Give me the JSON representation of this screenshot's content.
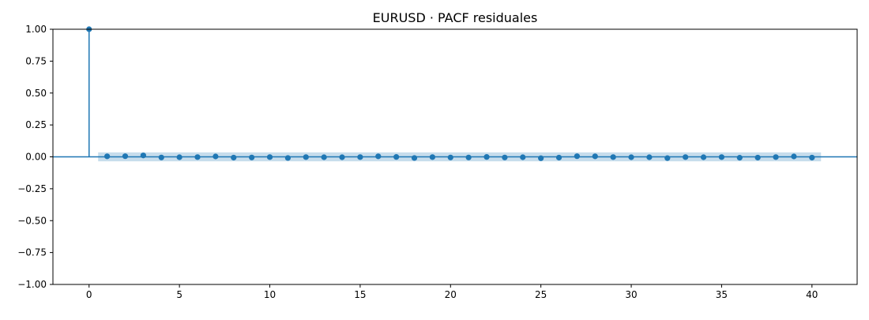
{
  "chart_data": {
    "type": "scatter",
    "title": "EURUSD · PACF residuales",
    "xlabel": "",
    "ylabel": "",
    "xlim": [
      -2,
      42.5
    ],
    "ylim": [
      -1.0,
      1.0
    ],
    "xticks": [
      0,
      5,
      10,
      15,
      20,
      25,
      30,
      35,
      40
    ],
    "xtick_labels": [
      "0",
      "5",
      "10",
      "15",
      "20",
      "25",
      "30",
      "35",
      "40"
    ],
    "yticks": [
      1.0,
      0.75,
      0.5,
      0.25,
      0.0,
      -0.25,
      -0.5,
      -0.75,
      -1.0
    ],
    "ytick_labels": [
      "1.00",
      "0.75",
      "0.50",
      "0.25",
      "0.00",
      "−0.25",
      "−0.50",
      "−0.75",
      "−1.00"
    ],
    "grid": false,
    "legend": "none",
    "series_color": "#1f77b4",
    "confidence_band": {
      "lower": -0.035,
      "upper": 0.035,
      "x_start": 0.5,
      "x_end": 40.5,
      "color": "#1f77b4"
    },
    "lags": [
      0,
      1,
      2,
      3,
      4,
      5,
      6,
      7,
      8,
      9,
      10,
      11,
      12,
      13,
      14,
      15,
      16,
      17,
      18,
      19,
      20,
      21,
      22,
      23,
      24,
      25,
      26,
      27,
      28,
      29,
      30,
      31,
      32,
      33,
      34,
      35,
      36,
      37,
      38,
      39,
      40
    ],
    "values": [
      1.0,
      0.004,
      0.005,
      0.011,
      -0.005,
      -0.003,
      -0.002,
      0.003,
      -0.006,
      -0.005,
      -0.002,
      -0.009,
      -0.002,
      -0.003,
      -0.003,
      -0.002,
      0.004,
      -0.001,
      -0.009,
      -0.002,
      -0.005,
      -0.005,
      -0.001,
      -0.005,
      -0.003,
      -0.011,
      -0.006,
      0.005,
      0.004,
      -0.002,
      -0.003,
      -0.003,
      -0.01,
      -0.002,
      -0.003,
      -0.002,
      -0.007,
      -0.006,
      -0.002,
      0.003,
      -0.006
    ]
  }
}
